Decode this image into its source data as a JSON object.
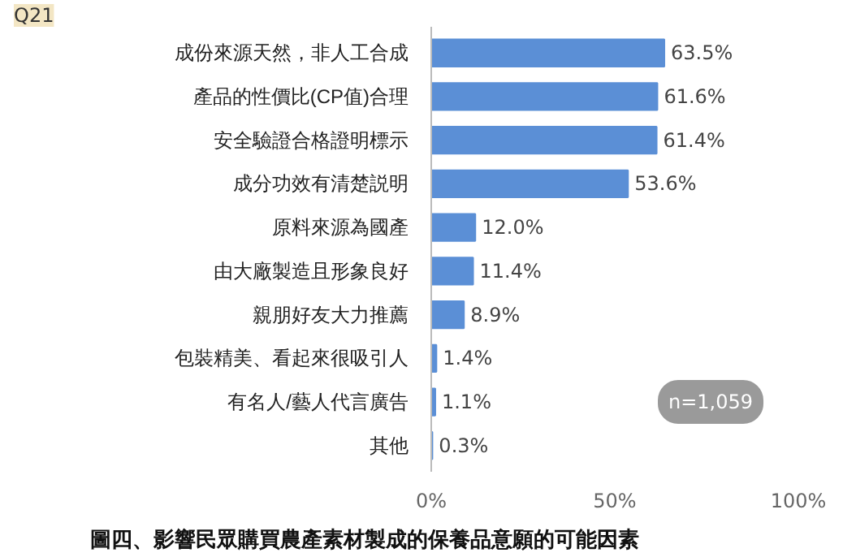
{
  "chart_data": {
    "type": "bar",
    "orientation": "horizontal",
    "title": "圖四、影響民眾購買農產素材製成的保養品意願的可能因素",
    "categories": [
      "成份來源天然，非人工合成",
      "產品的性價比(CP值)合理",
      "安全驗證合格證明標示",
      "成分功效有清楚説明",
      "原料來源為國產",
      "由大廠製造且形象良好",
      "親朋好友大力推薦",
      "包裝精美、看起來很吸引人",
      "有名人/藝人代言廣告",
      "其他"
    ],
    "values": [
      63.5,
      61.6,
      61.4,
      53.6,
      12.0,
      11.4,
      8.9,
      1.4,
      1.1,
      0.3
    ],
    "value_labels": [
      "63.5%",
      "61.6%",
      "61.4%",
      "53.6%",
      "12.0%",
      "11.4%",
      "8.9%",
      "1.4%",
      "1.1%",
      "0.3%"
    ],
    "color": "#5b8fd6",
    "xlim": [
      0,
      100
    ],
    "xticks": [
      {
        "value": 0,
        "label": "0%"
      },
      {
        "value": 50,
        "label": "50%"
      },
      {
        "value": 100,
        "label": "100%"
      }
    ],
    "grid": false,
    "annotations": [
      "Q21",
      "n=1,059"
    ]
  }
}
